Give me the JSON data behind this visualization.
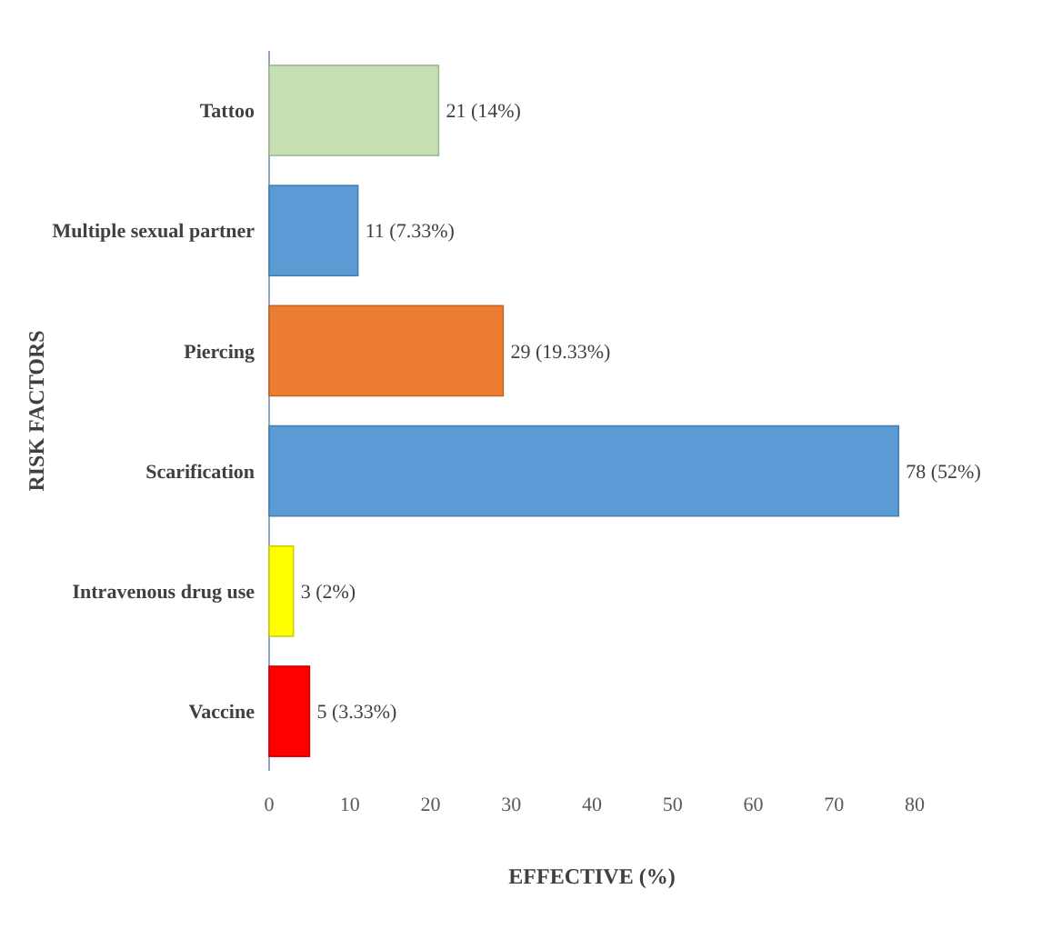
{
  "chart_data": {
    "type": "bar",
    "orientation": "horizontal",
    "xlabel": "EFFECTIVE  (%)",
    "ylabel": "RISK  FACTORS",
    "categories": [
      "Tattoo",
      "Multiple sexual partner",
      "Piercing",
      "Scarification",
      "Intravenous drug use",
      "Vaccine"
    ],
    "values": [
      21,
      11,
      29,
      78,
      3,
      5
    ],
    "colors": [
      "#c6e0b4",
      "#5b9bd5",
      "#ed7d31",
      "#5b9bd5",
      "#ffff00",
      "#ff0000"
    ],
    "value_labels": [
      "21 (14%)",
      "11 (7.33%)",
      "29 (19.33%)",
      "78 (52%)",
      "3 (2%)",
      "5 (3.33%)"
    ],
    "xlim": [
      0,
      80
    ],
    "xticks": [
      0,
      10,
      20,
      30,
      40,
      50,
      60,
      70,
      80
    ],
    "grid": false
  }
}
